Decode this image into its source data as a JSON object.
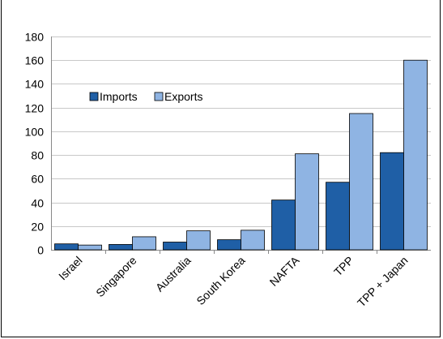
{
  "chart_data": {
    "type": "bar",
    "categories": [
      "Israel",
      "Singapore",
      "Australia",
      "South Korea",
      "NAFTA",
      "TPP",
      "TPP + Japan"
    ],
    "series": [
      {
        "name": "Imports",
        "values": [
          5,
          4.5,
          6.5,
          8.5,
          42,
          57,
          82
        ],
        "color": "#1f5fa6"
      },
      {
        "name": "Exports",
        "values": [
          4,
          11,
          16,
          16.5,
          81,
          115,
          160
        ],
        "color": "#8fb4e3"
      }
    ],
    "title": "",
    "xlabel": "",
    "ylabel": "",
    "ylim": [
      0,
      180
    ],
    "yticks": [
      "0",
      "20",
      "40",
      "60",
      "80",
      "100",
      "120",
      "140",
      "160",
      "180"
    ],
    "grid": true,
    "legend": "upper-left, inside plot"
  }
}
